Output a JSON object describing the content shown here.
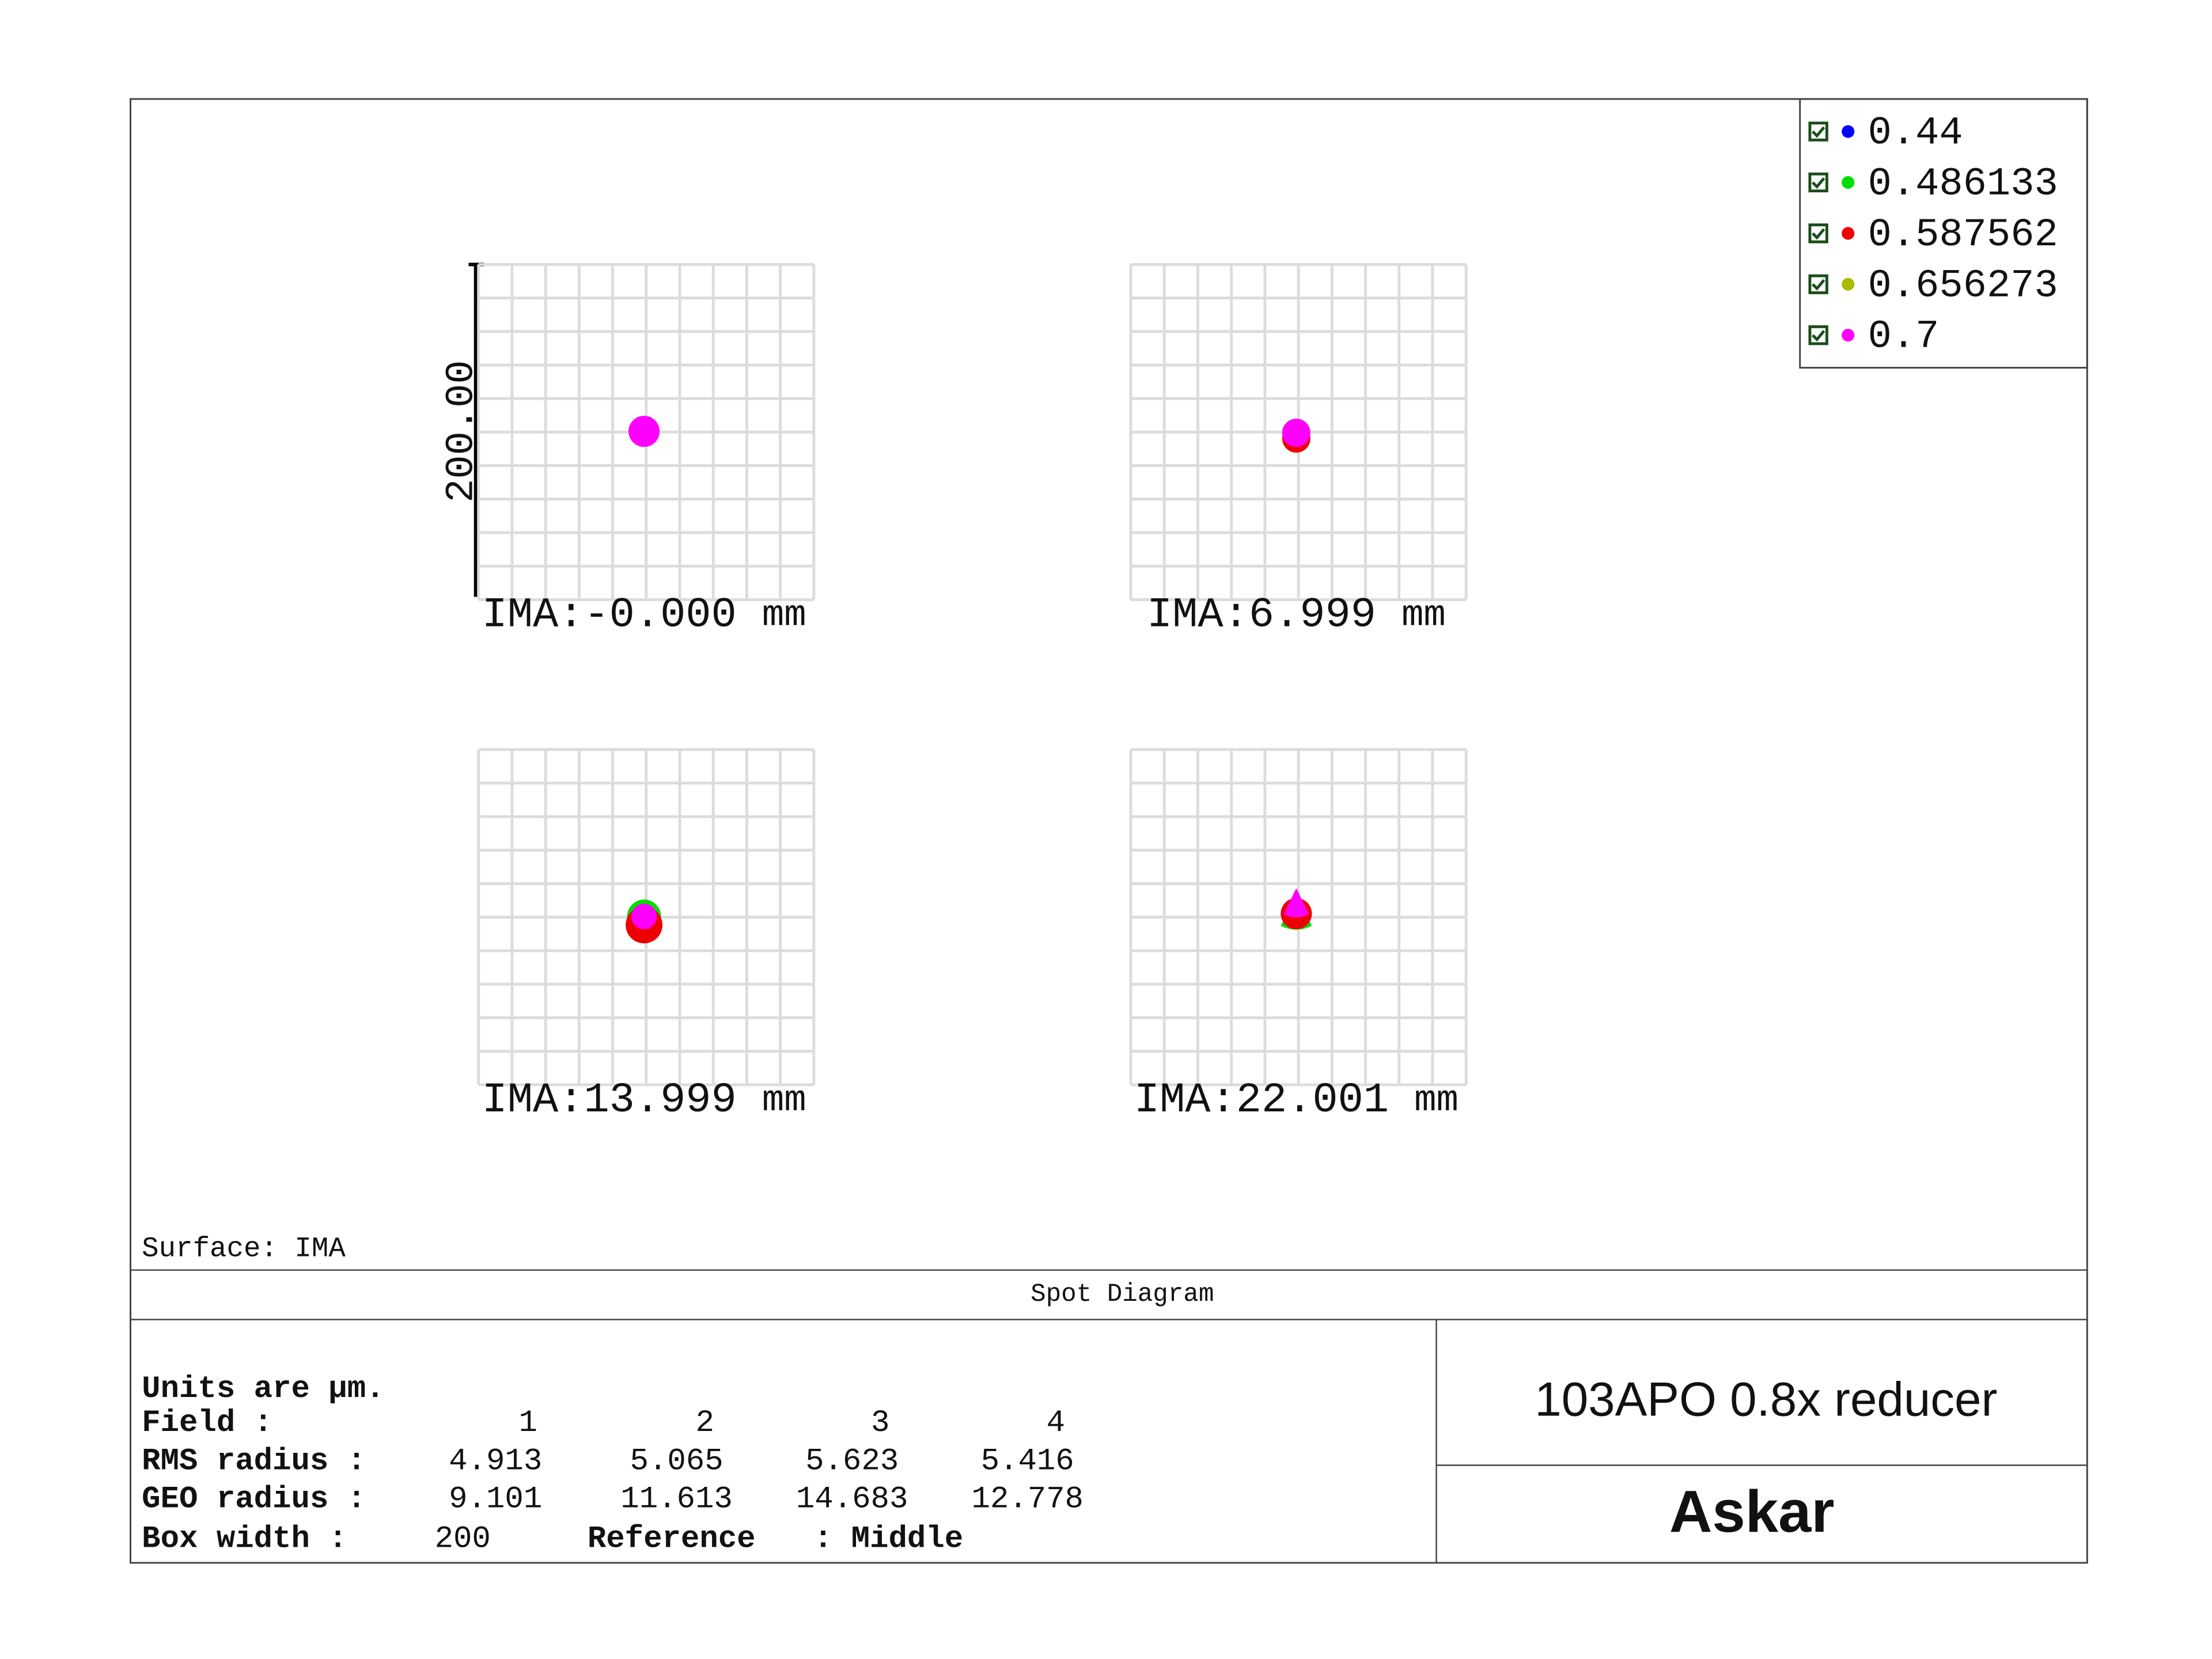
{
  "legend": [
    {
      "label": "0.44",
      "color": "#0000ff"
    },
    {
      "label": "0.486133",
      "color": "#00dd00"
    },
    {
      "label": "0.587562",
      "color": "#ee0000"
    },
    {
      "label": "0.656273",
      "color": "#aabb00"
    },
    {
      "label": "0.7",
      "color": "#ff00ff"
    }
  ],
  "scale_label": "200.00",
  "plots": [
    {
      "prefix": "IMA:",
      "value": "-0.000",
      "unit": "mm"
    },
    {
      "prefix": "IMA:",
      "value": "6.999",
      "unit": "mm"
    },
    {
      "prefix": "IMA:",
      "value": "13.999",
      "unit": "mm"
    },
    {
      "prefix": "IMA:",
      "value": "22.001",
      "unit": "mm"
    }
  ],
  "surface": "Surface: IMA",
  "title": "Spot Diagram",
  "table": {
    "units": "Units are µm.",
    "rows": [
      [
        "Field      :",
        "1",
        "2",
        "3",
        "4"
      ],
      [
        "RMS radius :",
        "4.913",
        "5.065",
        "5.623",
        "5.416"
      ],
      [
        "GEO radius :",
        "9.101",
        "11.613",
        "14.683",
        "12.778"
      ]
    ],
    "box_width": [
      "Box width  :",
      "200",
      "Reference",
      ": Middle"
    ]
  },
  "description": "103APO 0.8x reducer",
  "brand": "Askar"
}
